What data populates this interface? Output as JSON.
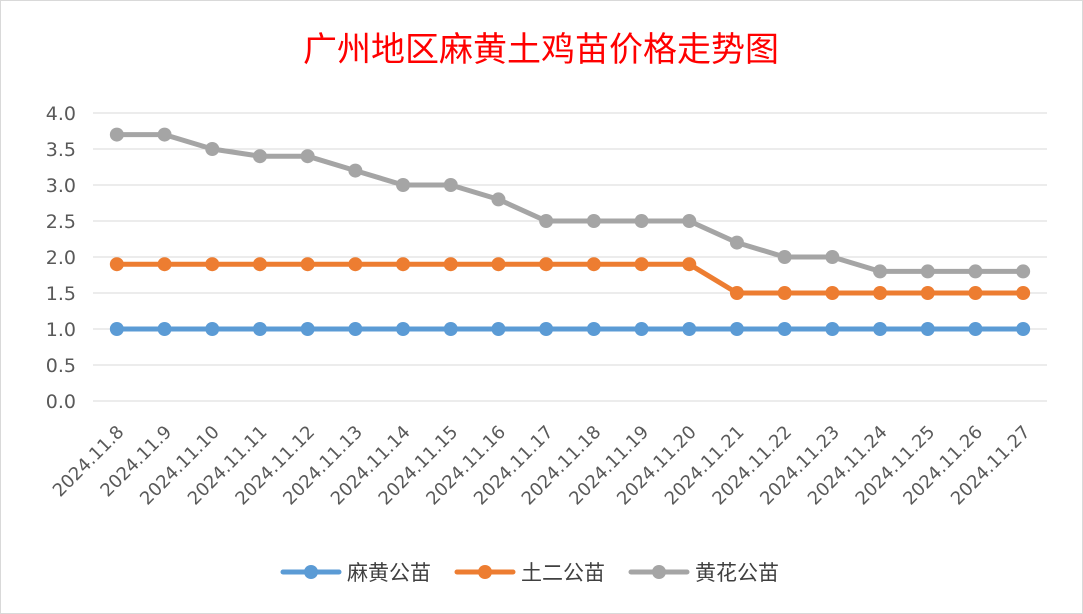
{
  "chart_data": {
    "type": "line",
    "title": "广州地区麻黄土鸡苗价格走势图",
    "xlabel": "",
    "ylabel": "",
    "ylim": [
      0,
      4
    ],
    "yticks": [
      "0.0",
      "0.5",
      "1.0",
      "1.5",
      "2.0",
      "2.5",
      "3.0",
      "3.5",
      "4.0"
    ],
    "grid": true,
    "legend_position": "bottom",
    "categories": [
      "2024.11.8",
      "2024.11.9",
      "2024.11.10",
      "2024.11.11",
      "2024.11.12",
      "2024.11.13",
      "2024.11.14",
      "2024.11.15",
      "2024.11.16",
      "2024.11.17",
      "2024.11.18",
      "2024.11.19",
      "2024.11.20",
      "2024.11.21",
      "2024.11.22",
      "2024.11.23",
      "2024.11.24",
      "2024.11.25",
      "2024.11.26",
      "2024.11.27"
    ],
    "series": [
      {
        "name": "麻黄公苗",
        "color": "#5b9bd5",
        "values": [
          1.0,
          1.0,
          1.0,
          1.0,
          1.0,
          1.0,
          1.0,
          1.0,
          1.0,
          1.0,
          1.0,
          1.0,
          1.0,
          1.0,
          1.0,
          1.0,
          1.0,
          1.0,
          1.0,
          1.0
        ]
      },
      {
        "name": "土二公苗",
        "color": "#ed7d31",
        "values": [
          1.9,
          1.9,
          1.9,
          1.9,
          1.9,
          1.9,
          1.9,
          1.9,
          1.9,
          1.9,
          1.9,
          1.9,
          1.9,
          1.5,
          1.5,
          1.5,
          1.5,
          1.5,
          1.5,
          1.5
        ]
      },
      {
        "name": "黄花公苗",
        "color": "#a5a5a5",
        "values": [
          3.7,
          3.7,
          3.5,
          3.4,
          3.4,
          3.2,
          3.0,
          3.0,
          2.8,
          2.5,
          2.5,
          2.5,
          2.5,
          2.2,
          2.0,
          2.0,
          1.8,
          1.8,
          1.8,
          1.8
        ]
      }
    ]
  }
}
